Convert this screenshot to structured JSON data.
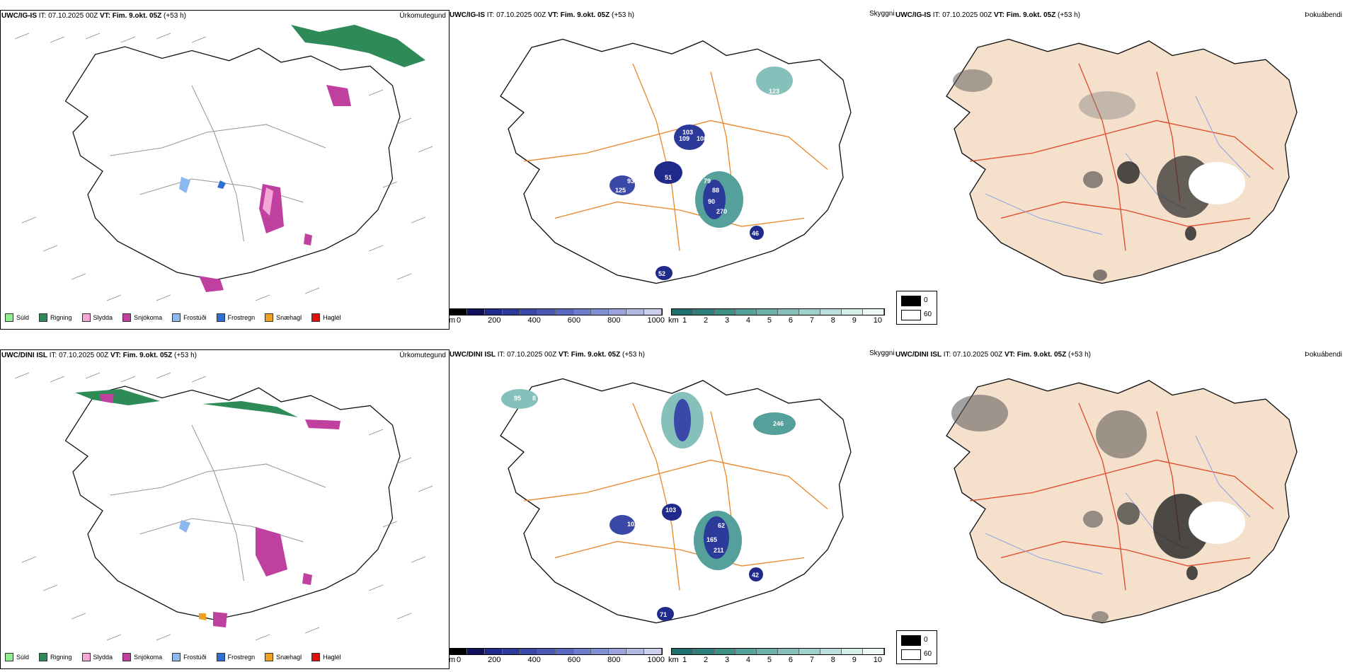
{
  "rows": [
    {
      "model": "UWC/IG-IS",
      "it_label": "IT:",
      "it_value": "07.10.2025 00Z",
      "vt_label": "VT:",
      "vt_value": "Fim. 9.okt. 05Z",
      "lead": "(+53 h)",
      "precip_title": "Úrkomutegund",
      "cloud_title": "Skyggni",
      "fog_title": "Þokuábendi",
      "cloud_labels": [
        "103",
        "109",
        "108",
        "93",
        "125",
        "51",
        "79",
        "88",
        "90",
        "270",
        "46",
        "52",
        "123",
        "10"
      ]
    },
    {
      "model": "UWC/DINI ISL",
      "it_label": "IT:",
      "it_value": "07.10.2025 00Z",
      "vt_label": "VT:",
      "vt_value": "Fim. 9.okt. 05Z",
      "lead": "(+53 h)",
      "precip_title": "Úrkomutegund",
      "cloud_title": "Skyggni",
      "fog_title": "Þokuábendi",
      "cloud_labels": [
        "95",
        "8",
        "108",
        "102",
        "103",
        "62",
        "165",
        "211",
        "42",
        "71",
        "246",
        "2"
      ]
    }
  ],
  "precip_legend": [
    {
      "label": "Súld",
      "color": "#90ee90"
    },
    {
      "label": "Rigning",
      "color": "#2e8b57"
    },
    {
      "label": "Slydda",
      "color": "#f4a6d7"
    },
    {
      "label": "Snjókoma",
      "color": "#c040a0"
    },
    {
      "label": "Frostúði",
      "color": "#8cb8f0"
    },
    {
      "label": "Frostregn",
      "color": "#2f6fd0"
    },
    {
      "label": "Snæhagl",
      "color": "#f0a020"
    },
    {
      "label": "Haglél",
      "color": "#e01010"
    }
  ],
  "height_scale": {
    "unit": "m",
    "ticks": [
      "0",
      "200",
      "400",
      "600",
      "800",
      "1000"
    ],
    "colors": [
      "#000000",
      "#10105a",
      "#1f2a8a",
      "#2c3a9a",
      "#3a48a8",
      "#4a58b4",
      "#5b68bf",
      "#6f7cca",
      "#8490d4",
      "#9aa3dc",
      "#b2b9e4",
      "#ccd0ee"
    ]
  },
  "vis_scale": {
    "unit": "km",
    "ticks": [
      "1",
      "2",
      "3",
      "4",
      "5",
      "6",
      "7",
      "8",
      "9",
      "10"
    ],
    "colors": [
      "#1e6e6e",
      "#2f7f7a",
      "#3f8f88",
      "#55a09a",
      "#6cb0aa",
      "#86c0ba",
      "#a0d0ca",
      "#bcdeda",
      "#d6ece9",
      "#f0f8f7"
    ]
  },
  "fog_scale": {
    "values": [
      "0",
      "60"
    ],
    "colors": [
      "#000000",
      "#ffffff"
    ]
  }
}
